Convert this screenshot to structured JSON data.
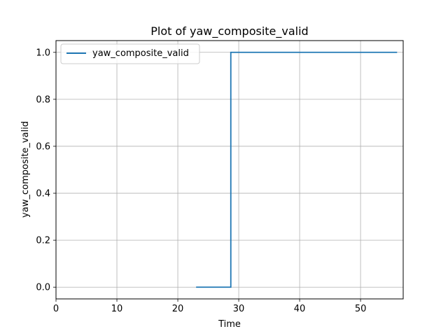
{
  "chart_data": {
    "type": "line",
    "title": "Plot of yaw_composite_valid",
    "xlabel": "Time",
    "ylabel": "yaw_composite_valid",
    "xlim": [
      0,
      57
    ],
    "ylim": [
      -0.05,
      1.05
    ],
    "x_ticks": [
      0,
      10,
      20,
      30,
      40,
      50
    ],
    "y_ticks": [
      0.0,
      0.2,
      0.4,
      0.6,
      0.8,
      1.0
    ],
    "x_tick_labels": [
      "0",
      "10",
      "20",
      "30",
      "40",
      "50"
    ],
    "y_tick_labels": [
      "0.0",
      "0.2",
      "0.4",
      "0.6",
      "0.8",
      "1.0"
    ],
    "grid": true,
    "legend_position": "upper-left",
    "series": [
      {
        "name": "yaw_composite_valid",
        "color": "#1f77b4",
        "step": true,
        "x": [
          23.0,
          28.7,
          28.7,
          56.0
        ],
        "y": [
          0.0,
          0.0,
          1.0,
          1.0
        ]
      }
    ]
  }
}
